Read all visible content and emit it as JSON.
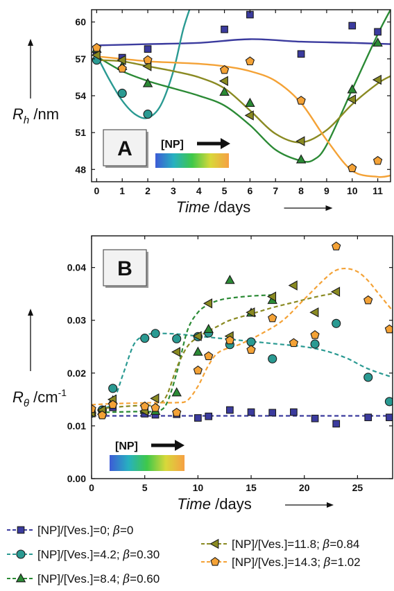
{
  "chart_data": [
    {
      "panel": "A",
      "type": "scatter",
      "xlabel_italic": "Time",
      "xlabel_unit": "/days",
      "ylabel_main": "R",
      "ylabel_sub": "h",
      "ylabel_unit": "/nm",
      "xlim": [
        -0.2,
        11.5
      ],
      "ylim": [
        47,
        61
      ],
      "xticks": [
        0,
        1,
        2,
        3,
        4,
        5,
        6,
        7,
        8,
        9,
        10,
        11
      ],
      "yticks": [
        48,
        51,
        54,
        57,
        60
      ],
      "colorbar_label": "[NP]",
      "series": [
        {
          "color": "#3b3b9e",
          "marker": "square",
          "x": [
            0,
            1,
            2,
            5,
            6,
            8,
            10,
            11
          ],
          "y": [
            57.6,
            57.1,
            57.8,
            59.4,
            60.6,
            57.4,
            59.7,
            59.2
          ],
          "fit_x": [
            0,
            2,
            4,
            6,
            8,
            10,
            11.5
          ],
          "fit_y": [
            58.1,
            58.2,
            58.3,
            58.6,
            58.4,
            58.3,
            58.2
          ]
        },
        {
          "color": "#2a9a92",
          "marker": "circle",
          "x": [
            0,
            1,
            2
          ],
          "y": [
            56.9,
            54.2,
            52.5
          ],
          "fit_x": [
            0,
            0.5,
            1,
            1.5,
            2,
            2.5,
            3,
            3.4,
            3.8
          ],
          "fit_y": [
            57.3,
            55.3,
            53.6,
            52.5,
            52.2,
            53.2,
            56,
            59.5,
            62
          ]
        },
        {
          "color": "#2b8a35",
          "marker": "triangle-up",
          "x": [
            0,
            1,
            2,
            5,
            6,
            8,
            10,
            11
          ],
          "y": [
            57.8,
            56.4,
            55,
            54.3,
            53.4,
            48.8,
            54.5,
            58.3
          ],
          "fit_x": [
            0,
            1,
            2,
            3,
            4,
            5,
            6,
            7,
            8,
            8.5,
            9,
            10,
            11,
            11.5
          ],
          "fit_y": [
            57.2,
            56,
            55.2,
            54.6,
            54,
            53.2,
            51.6,
            49.6,
            48.7,
            48.8,
            50,
            54.5,
            59,
            61
          ]
        },
        {
          "color": "#8a8a22",
          "marker": "triangle-left",
          "x": [
            0,
            1,
            2,
            5,
            6,
            8,
            10,
            11
          ],
          "y": [
            57.3,
            56.9,
            56.4,
            55.2,
            52.4,
            50.3,
            53.7,
            55.3
          ],
          "fit_x": [
            0,
            1,
            2,
            3,
            4,
            5,
            6,
            7,
            8,
            9,
            10,
            11,
            11.5
          ],
          "fit_y": [
            56.9,
            56.8,
            56.4,
            56,
            55.5,
            54.6,
            52.8,
            50.9,
            50.2,
            51.2,
            53.3,
            55,
            55.6
          ]
        },
        {
          "color": "#f4a236",
          "marker": "pentagon",
          "x": [
            0,
            1,
            2,
            5,
            6,
            8,
            10,
            11
          ],
          "y": [
            57.9,
            56.2,
            56.9,
            56.1,
            56.8,
            53.6,
            48.1,
            48.7
          ],
          "fit_x": [
            0,
            1,
            2,
            3,
            4,
            5,
            6,
            7,
            8,
            9,
            10,
            11,
            11.5
          ],
          "fit_y": [
            57.2,
            57.0,
            56.8,
            56.7,
            56.6,
            56.4,
            56.0,
            55.2,
            53.4,
            50.4,
            47.9,
            47.4,
            47.5
          ]
        }
      ]
    },
    {
      "panel": "B",
      "type": "scatter",
      "xlabel_italic": "Time",
      "xlabel_unit": "/days",
      "ylabel_main": "R",
      "ylabel_sub": "θ",
      "ylabel_unit": "/cm",
      "ylabel_sup": "-1",
      "xlim": [
        0,
        28.3
      ],
      "ylim": [
        0,
        0.046
      ],
      "xticks": [
        0,
        5,
        10,
        15,
        20,
        25
      ],
      "yticks": [
        0.0,
        0.01,
        0.02,
        0.03,
        0.04
      ],
      "ytick_labels": [
        "0.00",
        "0.01",
        "0.02",
        "0.03",
        "0.04"
      ],
      "colorbar_label": "[NP]",
      "series": [
        {
          "color": "#3b3b9e",
          "marker": "square",
          "x": [
            0,
            1,
            2,
            5,
            6,
            8,
            10,
            11,
            13,
            15,
            17,
            19,
            21,
            23,
            26,
            28
          ],
          "y": [
            0.0125,
            0.0122,
            0.0135,
            0.0123,
            0.0121,
            0.0122,
            0.0115,
            0.0118,
            0.013,
            0.0126,
            0.0125,
            0.0126,
            0.0114,
            0.0104,
            0.0116,
            0.0116
          ],
          "fit_x": [
            0,
            28.3
          ],
          "fit_y": [
            0.0119,
            0.0119
          ]
        },
        {
          "color": "#2a9a92",
          "marker": "circle",
          "x": [
            0,
            1,
            2,
            5,
            6,
            8,
            10,
            11,
            13,
            15,
            17,
            21,
            23,
            26,
            28
          ],
          "y": [
            0.0124,
            0.013,
            0.0171,
            0.0266,
            0.0275,
            0.0265,
            0.0269,
            0.0276,
            0.0254,
            0.0259,
            0.0227,
            0.0255,
            0.0294,
            0.0192,
            0.0146
          ],
          "fit_x": [
            0,
            1,
            2,
            3,
            4,
            5,
            6,
            8,
            10,
            12,
            14,
            16,
            18,
            20,
            22,
            24,
            26,
            28.3
          ],
          "fit_y": [
            0.013,
            0.0132,
            0.0145,
            0.02,
            0.0255,
            0.0271,
            0.0275,
            0.0274,
            0.027,
            0.0266,
            0.0262,
            0.0258,
            0.0254,
            0.025,
            0.0242,
            0.0228,
            0.0208,
            0.0192
          ]
        },
        {
          "color": "#2b8a35",
          "marker": "triangle-up",
          "x": [
            0,
            1,
            2,
            5,
            6,
            8,
            10,
            11,
            13,
            15,
            17
          ],
          "y": [
            0.0125,
            0.0128,
            0.0148,
            0.013,
            0.0128,
            0.0163,
            0.024,
            0.0283,
            0.0376,
            0.0314,
            0.0338
          ],
          "fit_x": [
            0,
            2,
            4,
            6,
            7,
            8,
            9,
            10,
            11,
            12,
            13,
            15,
            17
          ],
          "fit_y": [
            0.0125,
            0.0126,
            0.0127,
            0.0128,
            0.014,
            0.02,
            0.028,
            0.0315,
            0.033,
            0.0338,
            0.0342,
            0.0346,
            0.0348
          ]
        },
        {
          "color": "#8a8a22",
          "marker": "triangle-left",
          "x": [
            0,
            1,
            2,
            5,
            6,
            8,
            10,
            11,
            13,
            15,
            17,
            19,
            21,
            23
          ],
          "y": [
            0.0125,
            0.013,
            0.015,
            0.0128,
            0.0152,
            0.024,
            0.027,
            0.0332,
            0.027,
            0.0315,
            0.0345,
            0.0366,
            0.0315,
            0.0354
          ],
          "fit_x": [
            0,
            2,
            4,
            6,
            7,
            8,
            9,
            10,
            11,
            12,
            13,
            15,
            17,
            19,
            21,
            23
          ],
          "fit_y": [
            0.013,
            0.0135,
            0.0138,
            0.014,
            0.0155,
            0.021,
            0.025,
            0.0268,
            0.028,
            0.029,
            0.03,
            0.0312,
            0.0324,
            0.0334,
            0.0344,
            0.0352
          ]
        },
        {
          "color": "#f4a236",
          "marker": "pentagon",
          "x": [
            0,
            1,
            2,
            5,
            6,
            8,
            10,
            11,
            13,
            15,
            17,
            19,
            21,
            23,
            26,
            28
          ],
          "y": [
            0.0132,
            0.012,
            0.014,
            0.0137,
            0.0134,
            0.0125,
            0.0205,
            0.0232,
            0.0262,
            0.0244,
            0.0304,
            0.0257,
            0.0272,
            0.044,
            0.0338,
            0.0283
          ],
          "fit_x": [
            0,
            2,
            4,
            6,
            8,
            9,
            10,
            11,
            12,
            14,
            16,
            18,
            20,
            22,
            23,
            24,
            25,
            26,
            27,
            28.3
          ],
          "fit_y": [
            0.014,
            0.0142,
            0.0143,
            0.0144,
            0.0144,
            0.0148,
            0.0175,
            0.0215,
            0.024,
            0.0255,
            0.0275,
            0.03,
            0.034,
            0.038,
            0.0395,
            0.0398,
            0.0392,
            0.0375,
            0.035,
            0.0318
          ]
        }
      ]
    }
  ],
  "legend": [
    {
      "marker": "square",
      "color": "#3b3b9e",
      "text_a": "[NP]/[Ves.]=0; ",
      "beta": "β",
      "text_b": "=0"
    },
    {
      "marker": "circle",
      "color": "#2a9a92",
      "text_a": "[NP]/[Ves.]=4.2; ",
      "beta": "β",
      "text_b": "=0.30"
    },
    {
      "marker": "triangle-up",
      "color": "#2b8a35",
      "text_a": "[NP]/[Ves.]=8.4; ",
      "beta": "β",
      "text_b": "=0.60"
    },
    {
      "marker": "triangle-left",
      "color": "#8a8a22",
      "text_a": "[NP]/[Ves.]=11.8; ",
      "beta": "β",
      "text_b": "=0.84"
    },
    {
      "marker": "pentagon",
      "color": "#f4a236",
      "text_a": "[NP]/[Ves.]=14.3; ",
      "beta": "β",
      "text_b": "=1.02"
    }
  ]
}
